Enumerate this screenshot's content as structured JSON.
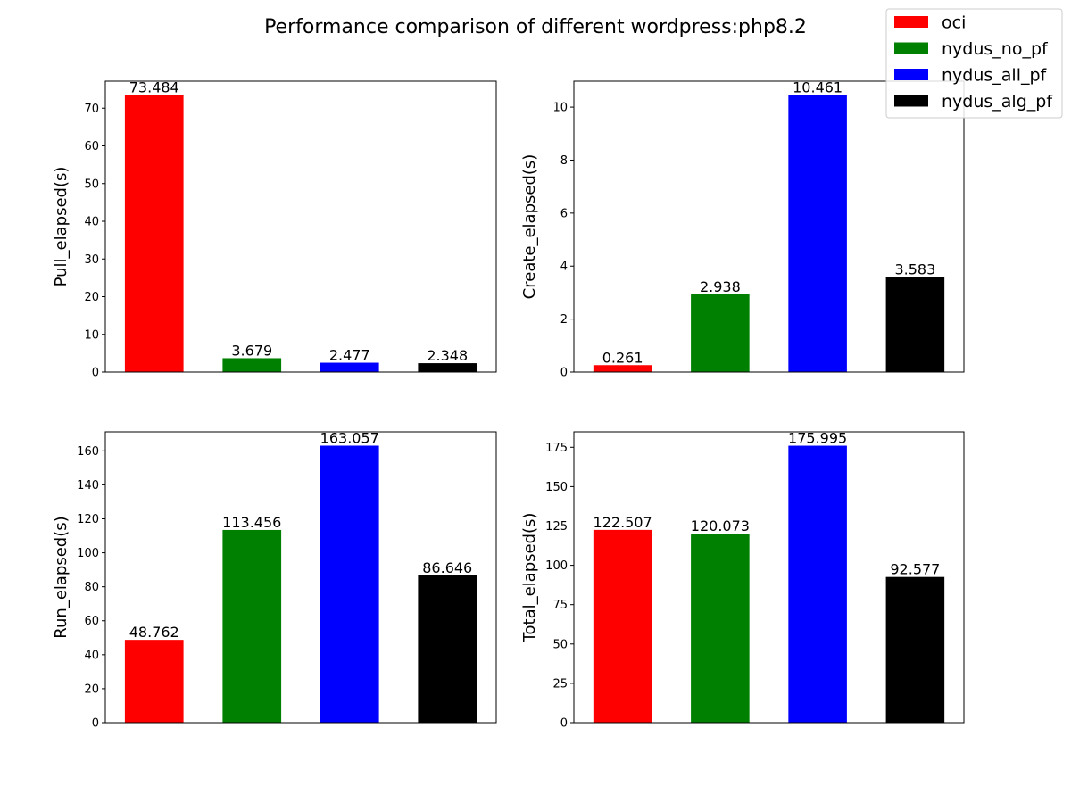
{
  "title": "Performance comparison of different wordpress:php8.2",
  "legend": {
    "placement": "top-right",
    "entries": [
      {
        "label": "oci",
        "color": "#ff0000"
      },
      {
        "label": "nydus_no_pf",
        "color": "#008000"
      },
      {
        "label": "nydus_all_pf",
        "color": "#0000ff"
      },
      {
        "label": "nydus_alg_pf",
        "color": "#000000"
      }
    ]
  },
  "chart_data": [
    {
      "type": "bar",
      "ylabel": "Pull_elapsed(s)",
      "ylim": [
        0,
        77.16
      ],
      "yticks": [
        0,
        10,
        20,
        30,
        40,
        50,
        60,
        70
      ],
      "categories": [
        "oci",
        "nydus_no_pf",
        "nydus_all_pf",
        "nydus_alg_pf"
      ],
      "values": [
        73.484,
        3.679,
        2.477,
        2.348
      ],
      "value_labels": [
        "73.484",
        "3.679",
        "2.477",
        "2.348"
      ],
      "colors": [
        "#ff0000",
        "#008000",
        "#0000ff",
        "#000000"
      ]
    },
    {
      "type": "bar",
      "ylabel": "Create_elapsed(s)",
      "ylim": [
        0,
        10.98
      ],
      "yticks": [
        0,
        2,
        4,
        6,
        8,
        10
      ],
      "categories": [
        "oci",
        "nydus_no_pf",
        "nydus_all_pf",
        "nydus_alg_pf"
      ],
      "values": [
        0.261,
        2.938,
        10.461,
        3.583
      ],
      "value_labels": [
        "0.261",
        "2.938",
        "10.461",
        "3.583"
      ],
      "colors": [
        "#ff0000",
        "#008000",
        "#0000ff",
        "#000000"
      ]
    },
    {
      "type": "bar",
      "ylabel": "Run_elapsed(s)",
      "ylim": [
        0,
        171.2
      ],
      "yticks": [
        0,
        20,
        40,
        60,
        80,
        100,
        120,
        140,
        160
      ],
      "categories": [
        "oci",
        "nydus_no_pf",
        "nydus_all_pf",
        "nydus_alg_pf"
      ],
      "values": [
        48.762,
        113.456,
        163.057,
        86.646
      ],
      "value_labels": [
        "48.762",
        "113.456",
        "163.057",
        "86.646"
      ],
      "colors": [
        "#ff0000",
        "#008000",
        "#0000ff",
        "#000000"
      ]
    },
    {
      "type": "bar",
      "ylabel": "Total_elapsed(s)",
      "ylim": [
        0,
        184.8
      ],
      "yticks": [
        0,
        25,
        50,
        75,
        100,
        125,
        150,
        175
      ],
      "categories": [
        "oci",
        "nydus_no_pf",
        "nydus_all_pf",
        "nydus_alg_pf"
      ],
      "values": [
        122.507,
        120.073,
        175.995,
        92.577
      ],
      "value_labels": [
        "122.507",
        "120.073",
        "175.995",
        "92.577"
      ],
      "colors": [
        "#ff0000",
        "#008000",
        "#0000ff",
        "#000000"
      ]
    }
  ]
}
